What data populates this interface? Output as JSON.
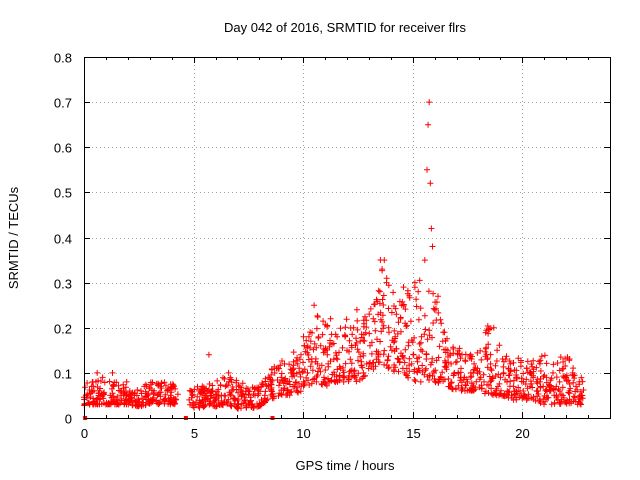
{
  "chart_data": {
    "type": "scatter",
    "title": "Day 042 of 2016, SRMTID for receiver flrs",
    "xlabel": "GPS time / hours",
    "ylabel": "SRMTID / TECUs",
    "xlim": [
      0,
      24
    ],
    "ylim": [
      0,
      0.8
    ],
    "x_ticks": [
      0,
      5,
      10,
      15,
      20
    ],
    "x_tick_labels": [
      "0",
      "5",
      "10",
      "15",
      "20"
    ],
    "y_ticks": [
      0,
      0.1,
      0.2,
      0.3,
      0.4,
      0.5,
      0.6,
      0.7,
      0.8
    ],
    "y_tick_labels": [
      "0",
      "0.1",
      "0.2",
      "0.3",
      "0.4",
      "0.5",
      "0.6",
      "0.7",
      "0.8"
    ],
    "grid": true,
    "marker": "+",
    "color": "#ff0000",
    "series": [
      {
        "name": "SRMTID",
        "points": [
          [
            0.1,
            0.05
          ],
          [
            0.25,
            0.03
          ],
          [
            0.4,
            0.08
          ],
          [
            0.55,
            0.04
          ],
          [
            0.7,
            0.06
          ],
          [
            0.85,
            0.09
          ],
          [
            1.0,
            0.03
          ],
          [
            1.2,
            0.05
          ],
          [
            1.35,
            0.07
          ],
          [
            1.5,
            0.04
          ],
          [
            1.65,
            0.06
          ],
          [
            1.8,
            0.05
          ],
          [
            1.95,
            0.08
          ],
          [
            2.1,
            0.04
          ],
          [
            2.3,
            0.05
          ],
          [
            2.45,
            0.03
          ],
          [
            2.6,
            0.06
          ],
          [
            2.75,
            0.07
          ],
          [
            2.9,
            0.05
          ],
          [
            3.05,
            0.04
          ],
          [
            3.2,
            0.06
          ],
          [
            3.35,
            0.05
          ],
          [
            3.5,
            0.07
          ],
          [
            3.65,
            0.04
          ],
          [
            3.8,
            0.06
          ],
          [
            3.95,
            0.05
          ],
          [
            4.1,
            0.07
          ],
          [
            4.2,
            0.04
          ],
          [
            1.3,
            0.1
          ],
          [
            0.6,
            0.1
          ],
          [
            4.8,
            0.04
          ],
          [
            4.95,
            0.05
          ],
          [
            5.1,
            0.03
          ],
          [
            5.25,
            0.06
          ],
          [
            5.4,
            0.04
          ],
          [
            5.55,
            0.05
          ],
          [
            5.7,
            0.14
          ],
          [
            5.85,
            0.06
          ],
          [
            6.0,
            0.04
          ],
          [
            6.15,
            0.05
          ],
          [
            6.3,
            0.03
          ],
          [
            6.45,
            0.07
          ],
          [
            6.6,
            0.1
          ],
          [
            6.75,
            0.06
          ],
          [
            6.9,
            0.04
          ],
          [
            7.05,
            0.03
          ],
          [
            7.2,
            0.05
          ],
          [
            7.35,
            0.04
          ],
          [
            7.5,
            0.06
          ],
          [
            7.65,
            0.03
          ],
          [
            7.8,
            0.05
          ],
          [
            7.95,
            0.06
          ],
          [
            8.1,
            0.04
          ],
          [
            8.25,
            0.05
          ],
          [
            8.4,
            0.07
          ],
          [
            8.55,
            0.08
          ],
          [
            8.7,
            0.1
          ],
          [
            8.85,
            0.11
          ],
          [
            9.0,
            0.09
          ],
          [
            9.15,
            0.12
          ],
          [
            9.3,
            0.08
          ],
          [
            9.45,
            0.1
          ],
          [
            9.6,
            0.07
          ],
          [
            9.75,
            0.12
          ],
          [
            9.9,
            0.14
          ],
          [
            10.05,
            0.16
          ],
          [
            10.2,
            0.1
          ],
          [
            10.35,
            0.17
          ],
          [
            10.5,
            0.25
          ],
          [
            10.65,
            0.12
          ],
          [
            10.8,
            0.16
          ],
          [
            10.95,
            0.09
          ],
          [
            11.1,
            0.14
          ],
          [
            11.25,
            0.22
          ],
          [
            11.4,
            0.13
          ],
          [
            11.55,
            0.18
          ],
          [
            11.7,
            0.11
          ],
          [
            11.85,
            0.08
          ],
          [
            12.0,
            0.15
          ],
          [
            12.15,
            0.13
          ],
          [
            12.3,
            0.2
          ],
          [
            12.45,
            0.24
          ],
          [
            12.6,
            0.17
          ],
          [
            12.75,
            0.1
          ],
          [
            12.9,
            0.12
          ],
          [
            13.05,
            0.16
          ],
          [
            13.2,
            0.22
          ],
          [
            13.35,
            0.13
          ],
          [
            13.5,
            0.28
          ],
          [
            13.6,
            0.33
          ],
          [
            13.7,
            0.35
          ],
          [
            13.8,
            0.3
          ],
          [
            13.9,
            0.2
          ],
          [
            14.05,
            0.15
          ],
          [
            14.2,
            0.18
          ],
          [
            14.35,
            0.13
          ],
          [
            14.5,
            0.25
          ],
          [
            14.65,
            0.21
          ],
          [
            14.8,
            0.16
          ],
          [
            14.95,
            0.12
          ],
          [
            15.1,
            0.3
          ],
          [
            15.25,
            0.28
          ],
          [
            15.4,
            0.18
          ],
          [
            15.55,
            0.35
          ],
          [
            15.65,
            0.55
          ],
          [
            15.7,
            0.65
          ],
          [
            15.75,
            0.7
          ],
          [
            15.8,
            0.52
          ],
          [
            15.85,
            0.42
          ],
          [
            15.9,
            0.38
          ],
          [
            16.0,
            0.24
          ],
          [
            16.15,
            0.27
          ],
          [
            16.3,
            0.21
          ],
          [
            16.45,
            0.19
          ],
          [
            16.6,
            0.15
          ],
          [
            16.75,
            0.12
          ],
          [
            16.9,
            0.1
          ],
          [
            17.05,
            0.14
          ],
          [
            17.2,
            0.11
          ],
          [
            17.35,
            0.09
          ],
          [
            17.5,
            0.08
          ],
          [
            17.65,
            0.1
          ],
          [
            17.8,
            0.12
          ],
          [
            17.95,
            0.11
          ],
          [
            18.1,
            0.09
          ],
          [
            18.25,
            0.08
          ],
          [
            18.4,
            0.13
          ],
          [
            18.55,
            0.12
          ],
          [
            18.7,
            0.2
          ],
          [
            18.85,
            0.15
          ],
          [
            19.0,
            0.09
          ],
          [
            19.15,
            0.1
          ],
          [
            19.3,
            0.08
          ],
          [
            19.45,
            0.12
          ],
          [
            19.6,
            0.07
          ],
          [
            19.75,
            0.09
          ],
          [
            19.9,
            0.06
          ],
          [
            20.05,
            0.08
          ],
          [
            20.2,
            0.11
          ],
          [
            20.35,
            0.07
          ],
          [
            20.5,
            0.09
          ],
          [
            20.65,
            0.06
          ],
          [
            20.8,
            0.08
          ],
          [
            20.95,
            0.07
          ],
          [
            21.1,
            0.09
          ],
          [
            21.25,
            0.06
          ],
          [
            21.4,
            0.1
          ],
          [
            21.55,
            0.07
          ],
          [
            21.7,
            0.08
          ],
          [
            21.85,
            0.05
          ],
          [
            22.0,
            0.09
          ],
          [
            22.15,
            0.06
          ],
          [
            22.3,
            0.1
          ],
          [
            22.45,
            0.07
          ],
          [
            22.6,
            0.08
          ],
          [
            22.7,
            0.05
          ]
        ],
        "envelope": [
          [
            0.0,
            0.025,
            0.075
          ],
          [
            0.5,
            0.03,
            0.085
          ],
          [
            1.0,
            0.03,
            0.08
          ],
          [
            1.5,
            0.03,
            0.085
          ],
          [
            2.0,
            0.03,
            0.08
          ],
          [
            2.5,
            0.025,
            0.07
          ],
          [
            3.0,
            0.03,
            0.08
          ],
          [
            3.5,
            0.03,
            0.085
          ],
          [
            4.0,
            0.03,
            0.08
          ],
          [
            4.3,
            0.03,
            0.07
          ],
          [
            4.8,
            0.025,
            0.065
          ],
          [
            5.0,
            0.02,
            0.07
          ],
          [
            5.5,
            0.025,
            0.08
          ],
          [
            6.0,
            0.025,
            0.08
          ],
          [
            6.5,
            0.03,
            0.1
          ],
          [
            7.0,
            0.02,
            0.085
          ],
          [
            7.5,
            0.02,
            0.07
          ],
          [
            8.0,
            0.025,
            0.07
          ],
          [
            8.5,
            0.04,
            0.11
          ],
          [
            9.0,
            0.05,
            0.13
          ],
          [
            9.5,
            0.05,
            0.14
          ],
          [
            10.0,
            0.06,
            0.2
          ],
          [
            10.5,
            0.08,
            0.25
          ],
          [
            11.0,
            0.07,
            0.22
          ],
          [
            11.5,
            0.08,
            0.21
          ],
          [
            12.0,
            0.08,
            0.22
          ],
          [
            12.5,
            0.08,
            0.25
          ],
          [
            13.0,
            0.1,
            0.23
          ],
          [
            13.5,
            0.12,
            0.36
          ],
          [
            14.0,
            0.1,
            0.28
          ],
          [
            14.5,
            0.1,
            0.31
          ],
          [
            15.0,
            0.08,
            0.3
          ],
          [
            15.5,
            0.08,
            0.33
          ],
          [
            16.0,
            0.08,
            0.28
          ],
          [
            16.5,
            0.07,
            0.2
          ],
          [
            17.0,
            0.06,
            0.17
          ],
          [
            17.5,
            0.06,
            0.14
          ],
          [
            18.0,
            0.06,
            0.15
          ],
          [
            18.5,
            0.05,
            0.22
          ],
          [
            19.0,
            0.05,
            0.16
          ],
          [
            19.5,
            0.04,
            0.13
          ],
          [
            20.0,
            0.04,
            0.14
          ],
          [
            20.5,
            0.04,
            0.13
          ],
          [
            21.0,
            0.03,
            0.15
          ],
          [
            21.5,
            0.03,
            0.13
          ],
          [
            22.0,
            0.03,
            0.14
          ],
          [
            22.5,
            0.03,
            0.11
          ],
          [
            22.8,
            0.03,
            0.08
          ]
        ]
      }
    ],
    "zero_markers_x": [
      0.05,
      4.65,
      8.6
    ]
  }
}
